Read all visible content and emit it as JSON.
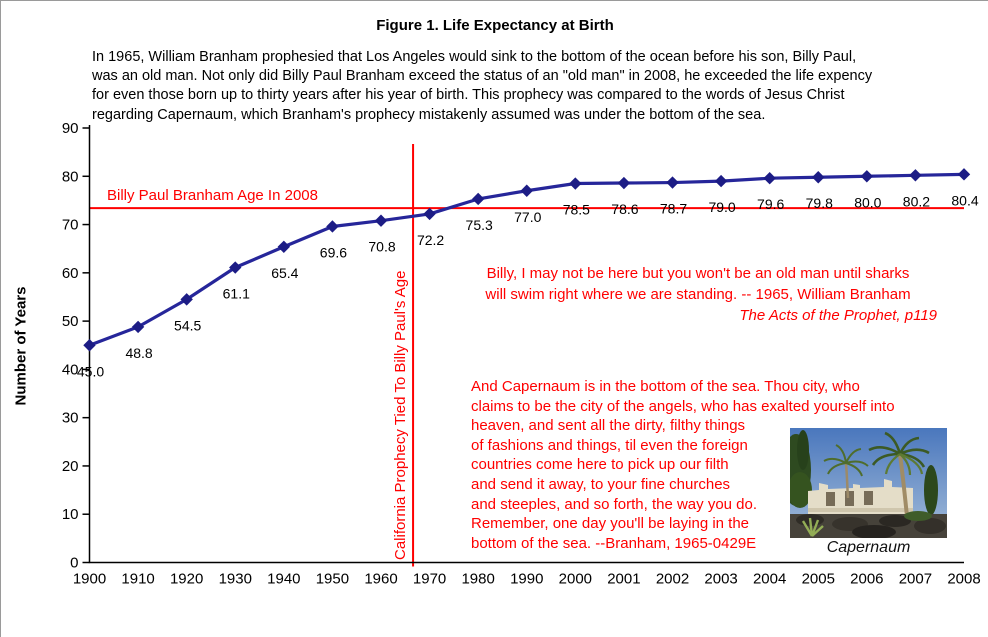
{
  "colors": {
    "series_line": "#26269A",
    "marker": "#1C1C85",
    "annotation_red": "#FF0000",
    "text": "#000000",
    "background": "#FFFFFF"
  },
  "header": {
    "figure_title": "Figure 1.  Life Expectancy at Birth"
  },
  "intro_lines": [
    "In 1965, William Branham prophesied that Los Angeles would sink to the bottom of the ocean before his son, Billy Paul,",
    "was an old man.  Not only did Billy Paul Branham exceed the status of an \"old man\" in 2008, he exceeded the life expency",
    "for even those born up to thirty years after his year of birth.  This prophecy was compared to the words of Jesus Christ",
    "regarding Capernaum, which Branham's prophecy mistakenly assumed was under the bottom of the sea."
  ],
  "chart_data": {
    "type": "line",
    "title": "Figure 1.  Life Expectancy at Birth",
    "xlabel": "",
    "ylabel": "Number of Years",
    "ylim": [
      0,
      90
    ],
    "y_ticks": [
      0,
      10,
      20,
      30,
      40,
      50,
      60,
      70,
      80,
      90
    ],
    "grid": false,
    "legend": "none",
    "categories": [
      "1900",
      "1910",
      "1920",
      "1930",
      "1940",
      "1950",
      "1960",
      "1970",
      "1980",
      "1990",
      "2000",
      "2001",
      "2002",
      "2003",
      "2004",
      "2005",
      "2006",
      "2007",
      "2008"
    ],
    "series": [
      {
        "name": "Life expectancy at birth",
        "values": [
          45.0,
          48.8,
          54.5,
          61.1,
          65.4,
          69.6,
          70.8,
          72.2,
          75.3,
          77.0,
          78.5,
          78.6,
          78.7,
          79.0,
          79.6,
          79.8,
          80.0,
          80.2,
          80.4
        ]
      }
    ],
    "data_labels": [
      "45.0",
      "48.8",
      "54.5",
      "61.1",
      "65.4",
      "69.6",
      "70.8",
      "72.2",
      "75.3",
      "77.0",
      "78.5",
      "78.6",
      "78.7",
      "79.0",
      "79.6",
      "79.8",
      "80.0",
      "80.2",
      "80.4"
    ],
    "reference_lines": {
      "horizontal": {
        "value": 73.4,
        "label": "Billy Paul Branham Age In 2008"
      },
      "vertical": {
        "after_category": "1960",
        "fraction": 0.66,
        "label": "California Prophecy Tied To Billy Paul's Age"
      }
    }
  },
  "annotations": {
    "quote1_lines": [
      "Billy, I may not be here but you won't be an old man until sharks",
      "will swim right where we are standing.  -- 1965, William Branham"
    ],
    "quote1_attribution": "The Acts of the Prophet, p119",
    "quote2_lines": [
      "And Capernaum is in the bottom of the sea.  Thou city, who",
      "claims to be the city of the angels, who has exalted yourself into",
      "heaven, and sent all the dirty, filthy things",
      "of fashions and things, til even the foreign",
      "countries come here to pick up our filth",
      "and send it away, to your fine churches",
      "and steeples, and so forth, the way you do.",
      "Remember, one day you'll be laying in the",
      "bottom of the sea.  --Branham, 1965-0429E"
    ]
  },
  "photo": {
    "caption": "Capernaum"
  }
}
